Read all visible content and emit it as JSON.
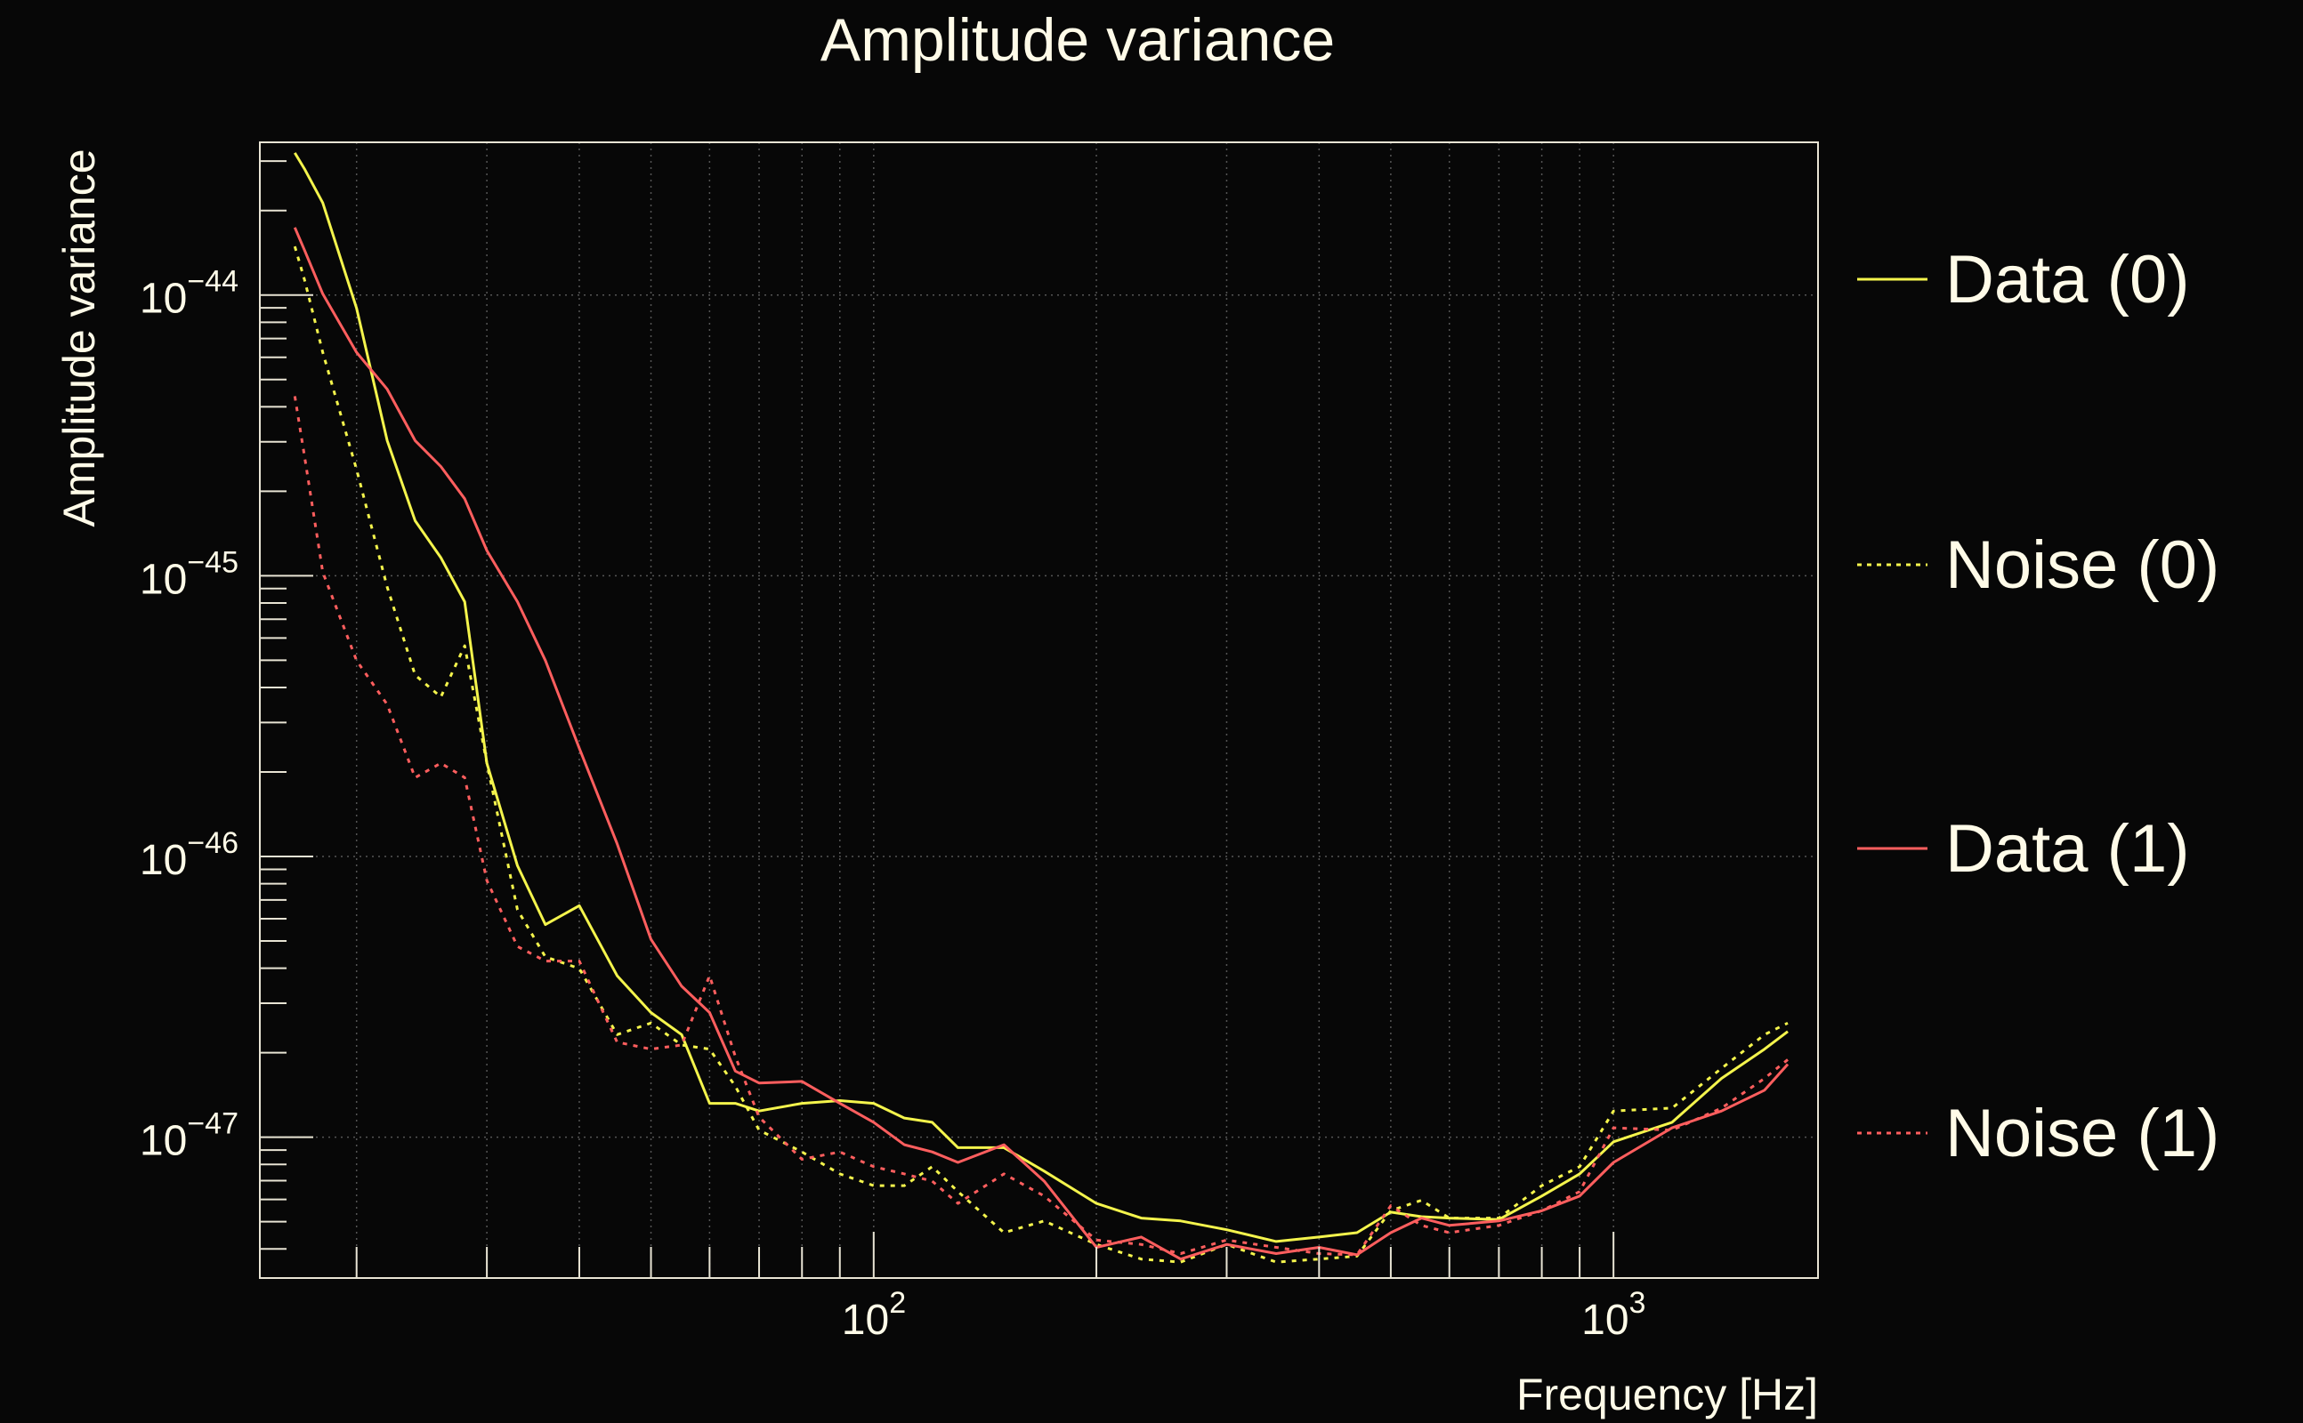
{
  "chart_data": {
    "type": "line",
    "title": "Amplitude variance",
    "xlabel": "Frequency [Hz]",
    "ylabel": "Amplitude variance",
    "xscale": "log",
    "yscale": "log",
    "xlim": [
      14.8,
      1890
    ],
    "ylim": [
      3.15e-48,
      3.5e-44
    ],
    "grid": true,
    "legend_position": "right",
    "x_ticks": [
      {
        "value": 100,
        "base": "10",
        "exp": "2"
      },
      {
        "value": 1000,
        "base": "10",
        "exp": "3"
      }
    ],
    "y_ticks": [
      {
        "value": 1e-44,
        "base": "10",
        "exp": "−44"
      },
      {
        "value": 1e-45,
        "base": "10",
        "exp": "−45"
      },
      {
        "value": 1e-46,
        "base": "10",
        "exp": "−46"
      },
      {
        "value": 1e-47,
        "base": "10",
        "exp": "−47"
      }
    ],
    "x": [
      16.5,
      17,
      18,
      20,
      22,
      24,
      26,
      28,
      30,
      33,
      36,
      40,
      45,
      50,
      55,
      60,
      65,
      70,
      80,
      90,
      100,
      110,
      120,
      130,
      150,
      170,
      200,
      230,
      260,
      300,
      350,
      400,
      450,
      500,
      550,
      600,
      700,
      800,
      900,
      1000,
      1200,
      1400,
      1600,
      1720
    ],
    "series": [
      {
        "name": "Data (0)",
        "color": "#f4f44c",
        "style": "solid",
        "values": [
          3.21e-44,
          2.82e-44,
          2.13e-44,
          8.97e-45,
          3.03e-45,
          1.57e-45,
          1.16e-45,
          8.08e-46,
          2.15e-46,
          9.27e-47,
          5.72e-47,
          6.68e-47,
          3.76e-47,
          2.78e-47,
          2.32e-47,
          1.32e-47,
          1.32e-47,
          1.24e-47,
          1.32e-47,
          1.35e-47,
          1.32e-47,
          1.17e-47,
          1.13e-47,
          9.18e-48,
          9.18e-48,
          7.57e-48,
          5.81e-48,
          5.15e-48,
          5.03e-48,
          4.68e-48,
          4.25e-48,
          4.41e-48,
          4.57e-48,
          5.41e-48,
          5.21e-48,
          5.15e-48,
          5.09e-48,
          6.17e-48,
          7.4e-48,
          9.63e-48,
          1.13e-47,
          1.62e-47,
          2.06e-47,
          2.38e-47
        ]
      },
      {
        "name": "Noise (0)",
        "color": "#f4f44c",
        "style": "dotted",
        "values": [
          1.49e-44,
          1.14e-44,
          6.25e-45,
          2.39e-45,
          9.12e-46,
          4.43e-46,
          3.7e-46,
          5.63e-46,
          2.15e-46,
          6.46e-47,
          4.39e-47,
          3.99e-47,
          2.32e-47,
          2.55e-47,
          2.13e-47,
          2.06e-47,
          1.52e-47,
          1.06e-47,
          8.86e-48,
          7.4e-48,
          6.72e-48,
          6.72e-48,
          7.85e-48,
          6.4e-48,
          4.57e-48,
          5.03e-48,
          4.15e-48,
          3.68e-48,
          3.59e-48,
          4.15e-48,
          3.59e-48,
          3.68e-48,
          3.77e-48,
          5.47e-48,
          5.96e-48,
          5.15e-48,
          5.15e-48,
          6.72e-48,
          7.85e-48,
          1.24e-47,
          1.27e-47,
          1.76e-47,
          2.32e-47,
          2.55e-47
        ]
      },
      {
        "name": "Data (1)",
        "color": "#ff5e5e",
        "style": "solid",
        "values": [
          1.74e-44,
          1.45e-44,
          1.01e-44,
          6.25e-45,
          4.62e-45,
          3.03e-45,
          2.45e-45,
          1.88e-45,
          1.23e-45,
          8.08e-46,
          4.99e-46,
          2.43e-46,
          1.11e-46,
          5.07e-47,
          3.45e-47,
          2.78e-47,
          1.72e-47,
          1.56e-47,
          1.58e-47,
          1.32e-47,
          1.13e-47,
          9.4e-48,
          8.86e-48,
          8.13e-48,
          9.4e-48,
          6.97e-48,
          4.05e-48,
          4.41e-48,
          3.68e-48,
          4.15e-48,
          3.85e-48,
          4.05e-48,
          3.81e-48,
          4.57e-48,
          5.15e-48,
          4.85e-48,
          5.03e-48,
          5.47e-48,
          6.17e-48,
          8.13e-48,
          1.08e-47,
          1.24e-47,
          1.47e-47,
          1.82e-47
        ]
      },
      {
        "name": "Noise (1)",
        "color": "#ff5e5e",
        "style": "dotted",
        "values": [
          4.36e-45,
          2.69e-45,
          1.03e-45,
          4.99e-46,
          3.48e-46,
          1.91e-46,
          2.15e-46,
          1.91e-46,
          8.21e-47,
          4.78e-47,
          4.24e-47,
          4.24e-47,
          2.18e-47,
          2.06e-47,
          2.13e-47,
          3.76e-47,
          1.94e-47,
          1.18e-47,
          8.34e-48,
          8.86e-48,
          7.85e-48,
          7.4e-48,
          6.97e-48,
          5.81e-48,
          7.4e-48,
          6.17e-48,
          4.3e-48,
          4.15e-48,
          3.85e-48,
          4.3e-48,
          4.05e-48,
          3.85e-48,
          3.81e-48,
          5.7e-48,
          4.85e-48,
          4.57e-48,
          4.85e-48,
          5.47e-48,
          6.4e-48,
          1.08e-47,
          1.06e-47,
          1.27e-47,
          1.62e-47,
          1.89e-47
        ]
      }
    ]
  }
}
